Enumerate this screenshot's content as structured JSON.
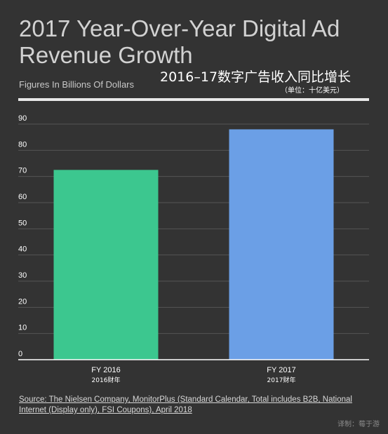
{
  "header": {
    "title": "2017 Year-Over-Year Digital Ad Revenue Growth",
    "subtitle": "Figures In Billions Of Dollars",
    "zh_title": "2016–17数字广告收入同比增长",
    "zh_unit": "（单位：十亿美元）"
  },
  "chart_data": {
    "type": "bar",
    "categories": [
      "FY 2016",
      "FY 2017"
    ],
    "categories_zh": [
      "2016财年",
      "2017财年"
    ],
    "values": [
      72.5,
      88
    ],
    "bar_colors": [
      "#3cc78f",
      "#6b9fe6"
    ],
    "ylim": [
      0,
      90
    ],
    "yticks": [
      0,
      10,
      20,
      30,
      40,
      50,
      60,
      70,
      80,
      90
    ],
    "grid": true
  },
  "footer": {
    "source": "Source: The Nielsen Company, MonitorPlus (Standard Calendar, Total includes B2B, National Internet (Display only), FSI Coupons), April 2018",
    "credit": "译制：莓于游"
  },
  "colors": {
    "background": "#333333",
    "gridline": "#555555",
    "axis": "#ffffff"
  }
}
